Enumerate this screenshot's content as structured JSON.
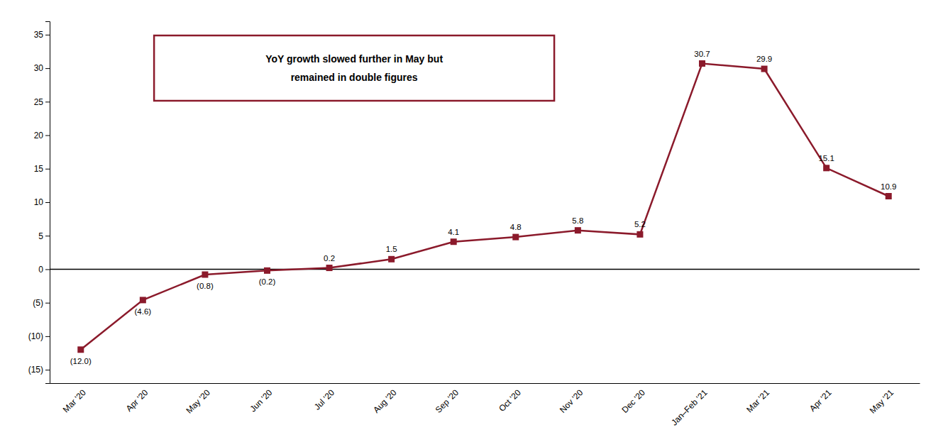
{
  "chart_data": {
    "type": "line",
    "categories": [
      "Mar '20",
      "Apr '20",
      "May '20",
      "Jun '20",
      "Jul '20",
      "Aug '20",
      "Sep '20",
      "Oct '20",
      "Nov '20",
      "Dec '20",
      "Jan–Feb '21",
      "Mar '21",
      "Apr '21",
      "May '21"
    ],
    "values": [
      -12.0,
      -4.6,
      -0.8,
      -0.2,
      0.2,
      1.5,
      4.1,
      4.8,
      5.8,
      5.2,
      30.7,
      29.9,
      15.1,
      10.9
    ],
    "value_labels": [
      "(12.0)",
      "(4.6)",
      "(0.8)",
      "(0.2)",
      "0.2",
      "1.5",
      "4.1",
      "4.8",
      "5.8",
      "5.2",
      "30.7",
      "29.9",
      "15.1",
      "10.9"
    ],
    "color": "#8B1A2B",
    "marker": "square",
    "data_labels": true,
    "grid": false,
    "annotation": "YoY growth slowed further in May but\nremained in double figures",
    "ylim": [
      -17,
      37
    ],
    "yticks": [
      {
        "value": -15,
        "label": "(15)"
      },
      {
        "value": -10,
        "label": "(10)"
      },
      {
        "value": -5,
        "label": "(5)"
      },
      0,
      5,
      10,
      15,
      20,
      25,
      30,
      35
    ]
  }
}
